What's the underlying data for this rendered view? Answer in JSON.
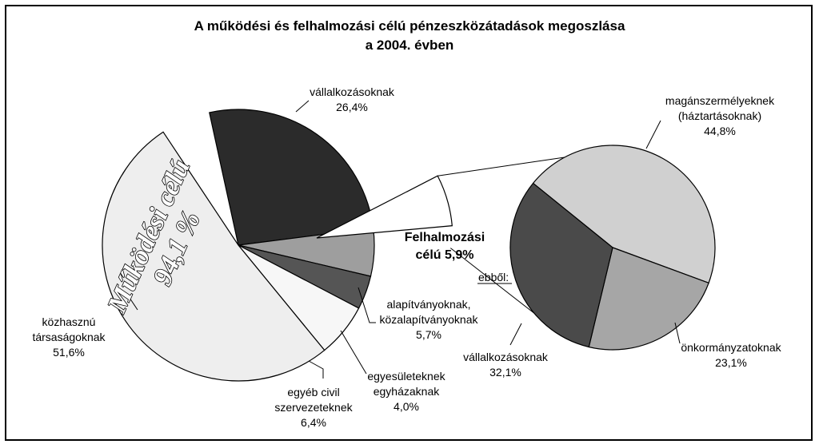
{
  "chart_data": {
    "type": "pie",
    "title_line1": "A működési és felhalmozási célú pénzeszközátadások megoszlása",
    "title_line2": "a 2004. évben",
    "main_pie": {
      "center_label": [
        "Működési célú",
        "94,1 %"
      ],
      "exploded_label": [
        "Felhalmozási",
        "célú 5,9%"
      ],
      "exploded_value": 5.9,
      "slices": [
        {
          "label": [
            "vállalkozásoknak"
          ],
          "value_text": "26,4%",
          "value": 26.4,
          "color": "#2b2b2b"
        },
        {
          "label": [
            "alapítványoknak,",
            "közalapítványoknak"
          ],
          "value_text": "5,7%",
          "value": 5.7,
          "color": "#9e9e9e"
        },
        {
          "label": [
            "egyesületeknek",
            "egyházaknak"
          ],
          "value_text": "4,0%",
          "value": 4.0,
          "color": "#555555"
        },
        {
          "label": [
            "egyéb civil",
            "szervezeteknek"
          ],
          "value_text": "6,4%",
          "value": 6.4,
          "color": "#f7f7f7"
        },
        {
          "label": [
            "közhasznú",
            "társaságoknak"
          ],
          "value_text": "51,6%",
          "value": 51.6,
          "color": "#eeeeee"
        }
      ]
    },
    "detail_pie": {
      "prefix_label": "ebből:",
      "slices": [
        {
          "label": [
            "magánszermélyeknek",
            "(háztartásoknak)"
          ],
          "value_text": "44,8%",
          "value": 44.8,
          "color": "#d0d0d0"
        },
        {
          "label": [
            "önkormányzatoknak"
          ],
          "value_text": "23,1%",
          "value": 23.1,
          "color": "#a6a6a6"
        },
        {
          "label": [
            "vállalkozásoknak"
          ],
          "value_text": "32,1%",
          "value": 32.1,
          "color": "#4a4a4a"
        }
      ]
    }
  }
}
